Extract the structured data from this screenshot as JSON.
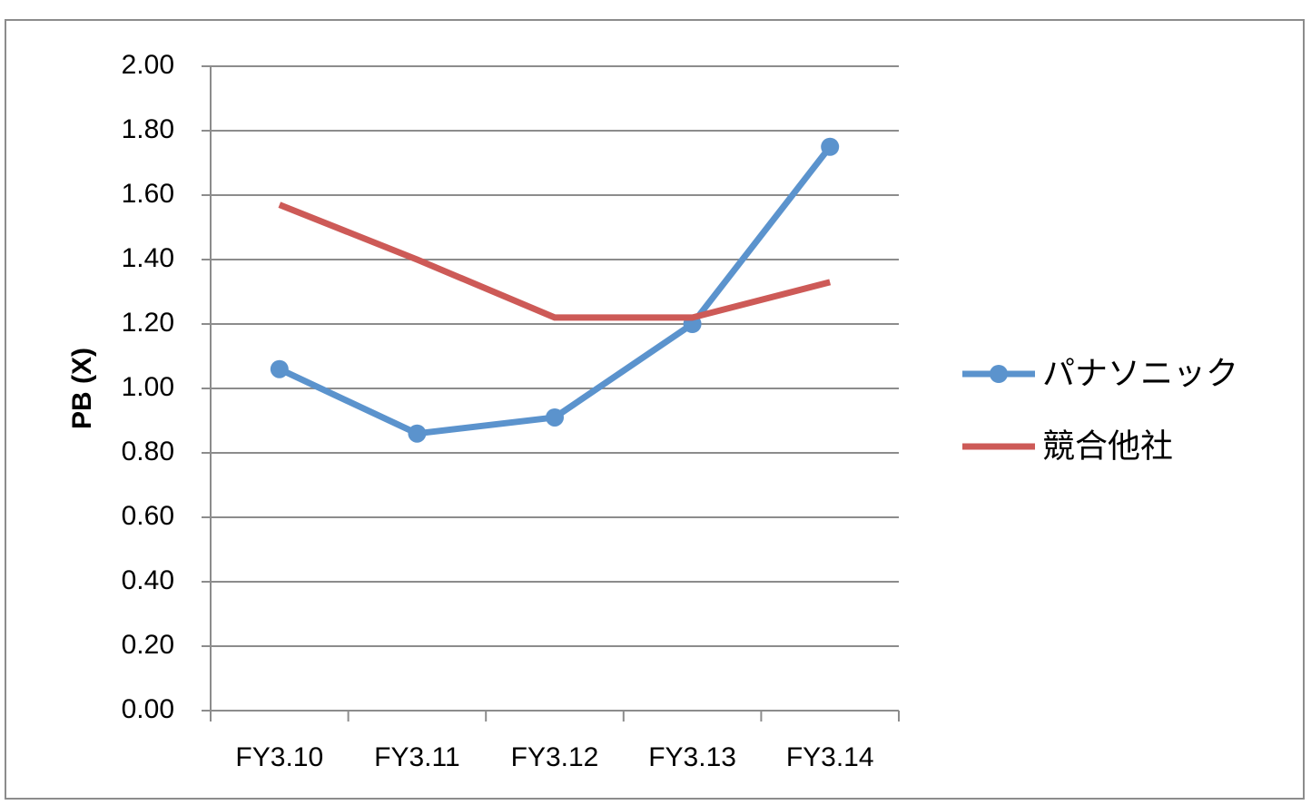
{
  "chart_data": {
    "type": "line",
    "y_label": "PB (X)",
    "categories": [
      "FY3.10",
      "FY3.11",
      "FY3.12",
      "FY3.13",
      "FY3.14"
    ],
    "series": [
      {
        "name": "パナソニック",
        "color": "#5b93cd",
        "marker": true,
        "values": [
          1.06,
          0.86,
          0.91,
          1.2,
          1.75
        ]
      },
      {
        "name": "競合他社",
        "color": "#cd5a57",
        "marker": false,
        "values": [
          1.57,
          1.4,
          1.22,
          1.22,
          1.33
        ]
      }
    ],
    "ylim": [
      0,
      2
    ],
    "yticks": [
      {
        "value": 0,
        "label": "0.00"
      },
      {
        "value": 0.2,
        "label": "0.20"
      },
      {
        "value": 0.4,
        "label": "0.40"
      },
      {
        "value": 0.6,
        "label": "0.60"
      },
      {
        "value": 0.8,
        "label": "0.80"
      },
      {
        "value": 1,
        "label": "1.00"
      },
      {
        "value": 1.2,
        "label": "1.20"
      },
      {
        "value": 1.4,
        "label": "1.40"
      },
      {
        "value": 1.6,
        "label": "1.60"
      },
      {
        "value": 1.8,
        "label": "1.80"
      },
      {
        "value": 2,
        "label": "2.00"
      }
    ],
    "grid": true,
    "legend": "right"
  }
}
